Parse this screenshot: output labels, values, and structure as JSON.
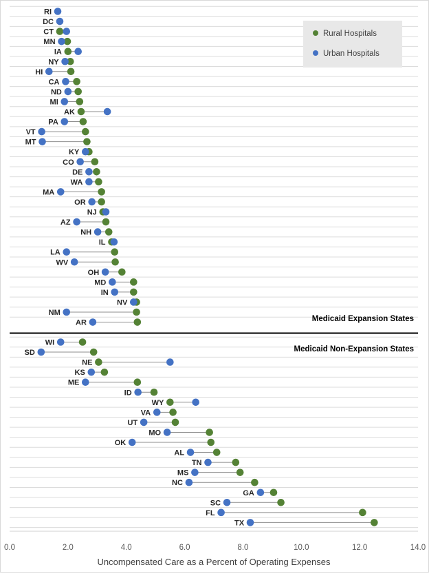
{
  "chart_data": {
    "type": "dumbbell",
    "xlabel": "Uncompensated Care as a Percent of Operating Expenses",
    "xlim": [
      0,
      14
    ],
    "x_ticks": [
      "0.0",
      "2.0",
      "4.0",
      "6.0",
      "8.0",
      "10.0",
      "12.0",
      "14.0"
    ],
    "grid": "horizontal",
    "legend": {
      "position": "top-right",
      "entries": [
        {
          "name": "Rural Hospitals",
          "color": "#548235"
        },
        {
          "name": "Urban Hospitals",
          "color": "#4472c4"
        }
      ]
    },
    "sections": [
      {
        "title": "Medicaid Expansion States",
        "rows": [
          {
            "state": "RI",
            "rural": null,
            "urban": 1.65
          },
          {
            "state": "DC",
            "rural": null,
            "urban": 1.72
          },
          {
            "state": "CT",
            "rural": 1.72,
            "urban": 1.95
          },
          {
            "state": "MN",
            "rural": 1.98,
            "urban": 1.78
          },
          {
            "state": "IA",
            "rural": 2.0,
            "urban": 2.35
          },
          {
            "state": "NY",
            "rural": 2.08,
            "urban": 1.9
          },
          {
            "state": "HI",
            "rural": 2.1,
            "urban": 1.35
          },
          {
            "state": "CA",
            "rural": 2.3,
            "urban": 1.92
          },
          {
            "state": "ND",
            "rural": 2.35,
            "urban": 2.0
          },
          {
            "state": "MI",
            "rural": 2.4,
            "urban": 1.88
          },
          {
            "state": "AK",
            "rural": 2.45,
            "urban": 3.35
          },
          {
            "state": "PA",
            "rural": 2.52,
            "urban": 1.88
          },
          {
            "state": "VT",
            "rural": 2.6,
            "urban": 1.1
          },
          {
            "state": "MT",
            "rural": 2.65,
            "urban": 1.12
          },
          {
            "state": "KY",
            "rural": 2.72,
            "urban": 2.6
          },
          {
            "state": "CO",
            "rural": 2.92,
            "urban": 2.42
          },
          {
            "state": "DE",
            "rural": 2.98,
            "urban": 2.72
          },
          {
            "state": "WA",
            "rural": 3.05,
            "urban": 2.72
          },
          {
            "state": "MA",
            "rural": 3.15,
            "urban": 1.75
          },
          {
            "state": "OR",
            "rural": 3.15,
            "urban": 2.82
          },
          {
            "state": "NJ",
            "rural": 3.2,
            "urban": 3.3
          },
          {
            "state": "AZ",
            "rural": 3.3,
            "urban": 2.3
          },
          {
            "state": "NH",
            "rural": 3.4,
            "urban": 3.02
          },
          {
            "state": "IL",
            "rural": 3.5,
            "urban": 3.58
          },
          {
            "state": "LA",
            "rural": 3.6,
            "urban": 1.95
          },
          {
            "state": "WV",
            "rural": 3.62,
            "urban": 2.22
          },
          {
            "state": "OH",
            "rural": 3.85,
            "urban": 3.28
          },
          {
            "state": "MD",
            "rural": 4.25,
            "urban": 3.52
          },
          {
            "state": "IN",
            "rural": 4.25,
            "urban": 3.6
          },
          {
            "state": "NV",
            "rural": 4.35,
            "urban": 4.25
          },
          {
            "state": "NM",
            "rural": 4.35,
            "urban": 1.95
          },
          {
            "state": "AR",
            "rural": 4.38,
            "urban": 2.85
          }
        ]
      },
      {
        "title": "Medicaid Non-Expansion States",
        "rows": [
          {
            "state": "WI",
            "rural": 2.5,
            "urban": 1.75
          },
          {
            "state": "SD",
            "rural": 2.88,
            "urban": 1.08
          },
          {
            "state": "NE",
            "rural": 3.05,
            "urban": 5.5
          },
          {
            "state": "KS",
            "rural": 3.25,
            "urban": 2.8
          },
          {
            "state": "ME",
            "rural": 4.38,
            "urban": 2.6
          },
          {
            "state": "ID",
            "rural": 4.95,
            "urban": 4.4
          },
          {
            "state": "WY",
            "rural": 5.5,
            "urban": 6.38
          },
          {
            "state": "VA",
            "rural": 5.6,
            "urban": 5.05
          },
          {
            "state": "UT",
            "rural": 5.68,
            "urban": 4.6
          },
          {
            "state": "MO",
            "rural": 6.85,
            "urban": 5.4
          },
          {
            "state": "OK",
            "rural": 6.9,
            "urban": 4.2
          },
          {
            "state": "AL",
            "rural": 7.1,
            "urban": 6.2
          },
          {
            "state": "TN",
            "rural": 7.75,
            "urban": 6.8
          },
          {
            "state": "MS",
            "rural": 7.9,
            "urban": 6.35
          },
          {
            "state": "NC",
            "rural": 8.4,
            "urban": 6.15
          },
          {
            "state": "GA",
            "rural": 9.05,
            "urban": 8.6
          },
          {
            "state": "SC",
            "rural": 9.3,
            "urban": 7.45
          },
          {
            "state": "FL",
            "rural": 12.1,
            "urban": 7.25
          },
          {
            "state": "TX",
            "rural": 12.5,
            "urban": 8.25
          }
        ]
      }
    ]
  }
}
